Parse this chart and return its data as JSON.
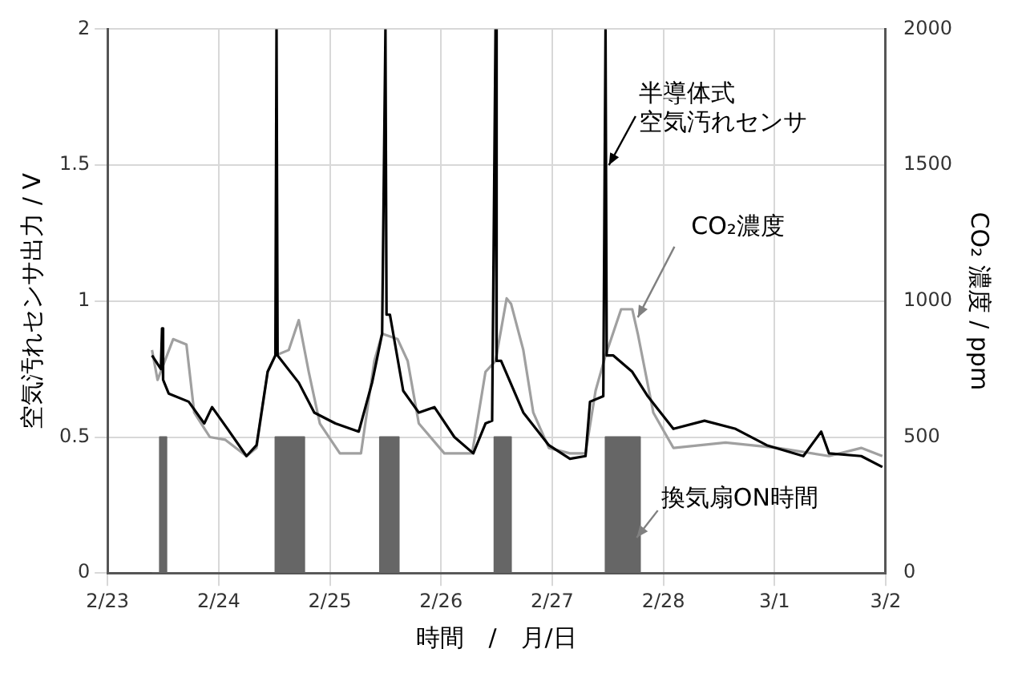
{
  "chart_data": {
    "type": "line",
    "xlabel": "時間　/　月/日",
    "ylabel": "空気汚れセンサ出力 / V",
    "y2label": "CO₂ 濃度 / ppm",
    "xlim": [
      "--02-23",
      "--03-02"
    ],
    "xticks": [
      {
        "value": "--02-23",
        "label": "2/23"
      },
      {
        "value": "--02-24",
        "label": "2/24"
      },
      {
        "value": "--02-25",
        "label": "2/25"
      },
      {
        "value": "--02-26",
        "label": "2/26"
      },
      {
        "value": "--02-27",
        "label": "2/27"
      },
      {
        "value": "--02-28",
        "label": "2/28"
      },
      {
        "value": "--03-01",
        "label": "3/1"
      },
      {
        "value": "--03-02",
        "label": "3/2"
      }
    ],
    "ylim": [
      0,
      2
    ],
    "yticks": [
      0,
      0.5,
      1,
      1.5,
      2
    ],
    "y2lim": [
      0,
      2000
    ],
    "y2ticks": [
      0,
      500,
      1000,
      1500,
      2000
    ],
    "grid": true,
    "legend": false,
    "series": [
      {
        "name": "換気扇ON時間",
        "type": "area",
        "color": "#666666",
        "x": [
          "--02-23T09:36",
          "--02-23T11:17",
          "--02-23T11:17",
          "--02-23T12:43",
          "--02-23T12:43",
          "--02-24T12:14",
          "--02-24T12:14",
          "--02-24T18:29",
          "--02-24T18:29",
          "--02-25T10:48",
          "--02-25T10:48",
          "--02-25T14:53",
          "--02-25T14:53",
          "--02-26T11:31",
          "--02-26T11:31",
          "--02-26T15:07",
          "--02-26T15:07",
          "--02-27T11:31",
          "--02-27T11:31",
          "--02-27T18:58",
          "--02-27T18:58",
          "--03-02"
        ],
        "values": [
          0,
          0,
          0.5,
          0.5,
          0,
          0,
          0.5,
          0.5,
          0,
          0,
          0.5,
          0.5,
          0,
          0,
          0.5,
          0.5,
          0,
          0,
          0.5,
          0.5,
          0,
          0
        ]
      },
      {
        "name": "CO₂濃度",
        "color": "#a0a0a0",
        "axis": "y2",
        "x": [
          "--02-23T09:36",
          "--02-23T10:48",
          "--02-23T14:10",
          "--02-23T17:02",
          "--02-23T18:43",
          "--02-23T22:05",
          "--02-24T01:26",
          "--02-24T06:00",
          "--02-24T08:10",
          "--02-24T10:34",
          "--02-24T12:14",
          "--02-24T15:07",
          "--02-24T17:17",
          "--02-24T19:26",
          "--02-24T21:50",
          "--02-25T02:10",
          "--02-25T06:43",
          "--02-25T09:36",
          "--02-25T11:17",
          "--02-25T14:38",
          "--02-25T16:48",
          "--02-25T19:12",
          "--02-26T00:43",
          "--02-26T06:43",
          "--02-26T09:36",
          "--02-26T11:46",
          "--02-26T14:10",
          "--02-26T15:07",
          "--02-26T17:46",
          "--02-26T19:55",
          "--02-26T23:17",
          "--02-27T03:50",
          "--02-27T07:12",
          "--02-27T09:22",
          "--02-27T11:31",
          "--02-27T14:53",
          "--02-27T17:17",
          "--02-27T18:29",
          "--02-27T21:50",
          "--02-28T02:10",
          "--02-28T13:26",
          "--03-01T00:43",
          "--03-01T11:46",
          "--03-01T18:43",
          "--03-01T23:17"
        ],
        "values": [
          820,
          710,
          860,
          840,
          590,
          500,
          490,
          430,
          460,
          740,
          800,
          820,
          930,
          740,
          550,
          440,
          440,
          780,
          880,
          860,
          780,
          550,
          440,
          440,
          740,
          780,
          1010,
          990,
          820,
          590,
          460,
          440,
          440,
          670,
          800,
          970,
          970,
          880,
          590,
          460,
          480,
          460,
          430,
          460,
          430
        ]
      },
      {
        "name": "半導体式空気汚れセンサ",
        "color": "#000000",
        "x": [
          "--02-23T09:36",
          "--02-23T11:31",
          "--02-23T11:46",
          "--02-23T12:00",
          "--02-23T13:12",
          "--02-23T17:31",
          "--02-23T20:53",
          "--02-23T22:34",
          "--02-24T01:55",
          "--02-24T06:00",
          "--02-24T08:10",
          "--02-24T10:34",
          "--02-24T12:14",
          "--02-24T12:29",
          "--02-24T12:43",
          "--02-24T12:58",
          "--02-24T17:17",
          "--02-24T20:38",
          "--02-25T01:12",
          "--02-25T06:14",
          "--02-25T09:07",
          "--02-25T11:17",
          "--02-25T12:00",
          "--02-25T12:14",
          "--02-25T12:58",
          "--02-25T15:50",
          "--02-25T19:12",
          "--02-25T22:34",
          "--02-26T02:53",
          "--02-26T06:58",
          "--02-26T09:36",
          "--02-26T11:02",
          "--02-26T11:46",
          "--02-26T12:00",
          "--02-26T12:58",
          "--02-26T17:46",
          "--02-26T23:17",
          "--02-27T03:50",
          "--02-27T07:12",
          "--02-27T08:10",
          "--02-27T11:02",
          "--02-27T11:31",
          "--02-27T11:46",
          "--02-27T13:12",
          "--02-27T17:17",
          "--02-27T20:38",
          "--02-28T02:10",
          "--02-28T08:53",
          "--02-28T15:36",
          "--02-28T22:19",
          "--03-01T06:14",
          "--03-01T10:05",
          "--03-01T11:46",
          "--03-01T18:43",
          "--03-01T23:17"
        ],
        "values": [
          0.8,
          0.75,
          0.9,
          0.71,
          0.66,
          0.63,
          0.55,
          0.61,
          0.53,
          0.43,
          0.47,
          0.74,
          0.8,
          2,
          0.8,
          0.8,
          0.7,
          0.59,
          0.55,
          0.52,
          0.7,
          0.88,
          2,
          0.95,
          0.95,
          0.67,
          0.59,
          0.61,
          0.5,
          0.44,
          0.55,
          0.56,
          2,
          0.78,
          0.78,
          0.59,
          0.47,
          0.42,
          0.43,
          0.63,
          0.65,
          2,
          0.8,
          0.8,
          0.74,
          0.65,
          0.53,
          0.56,
          0.53,
          0.47,
          0.43,
          0.52,
          0.44,
          0.43,
          0.39
        ]
      }
    ]
  }
}
